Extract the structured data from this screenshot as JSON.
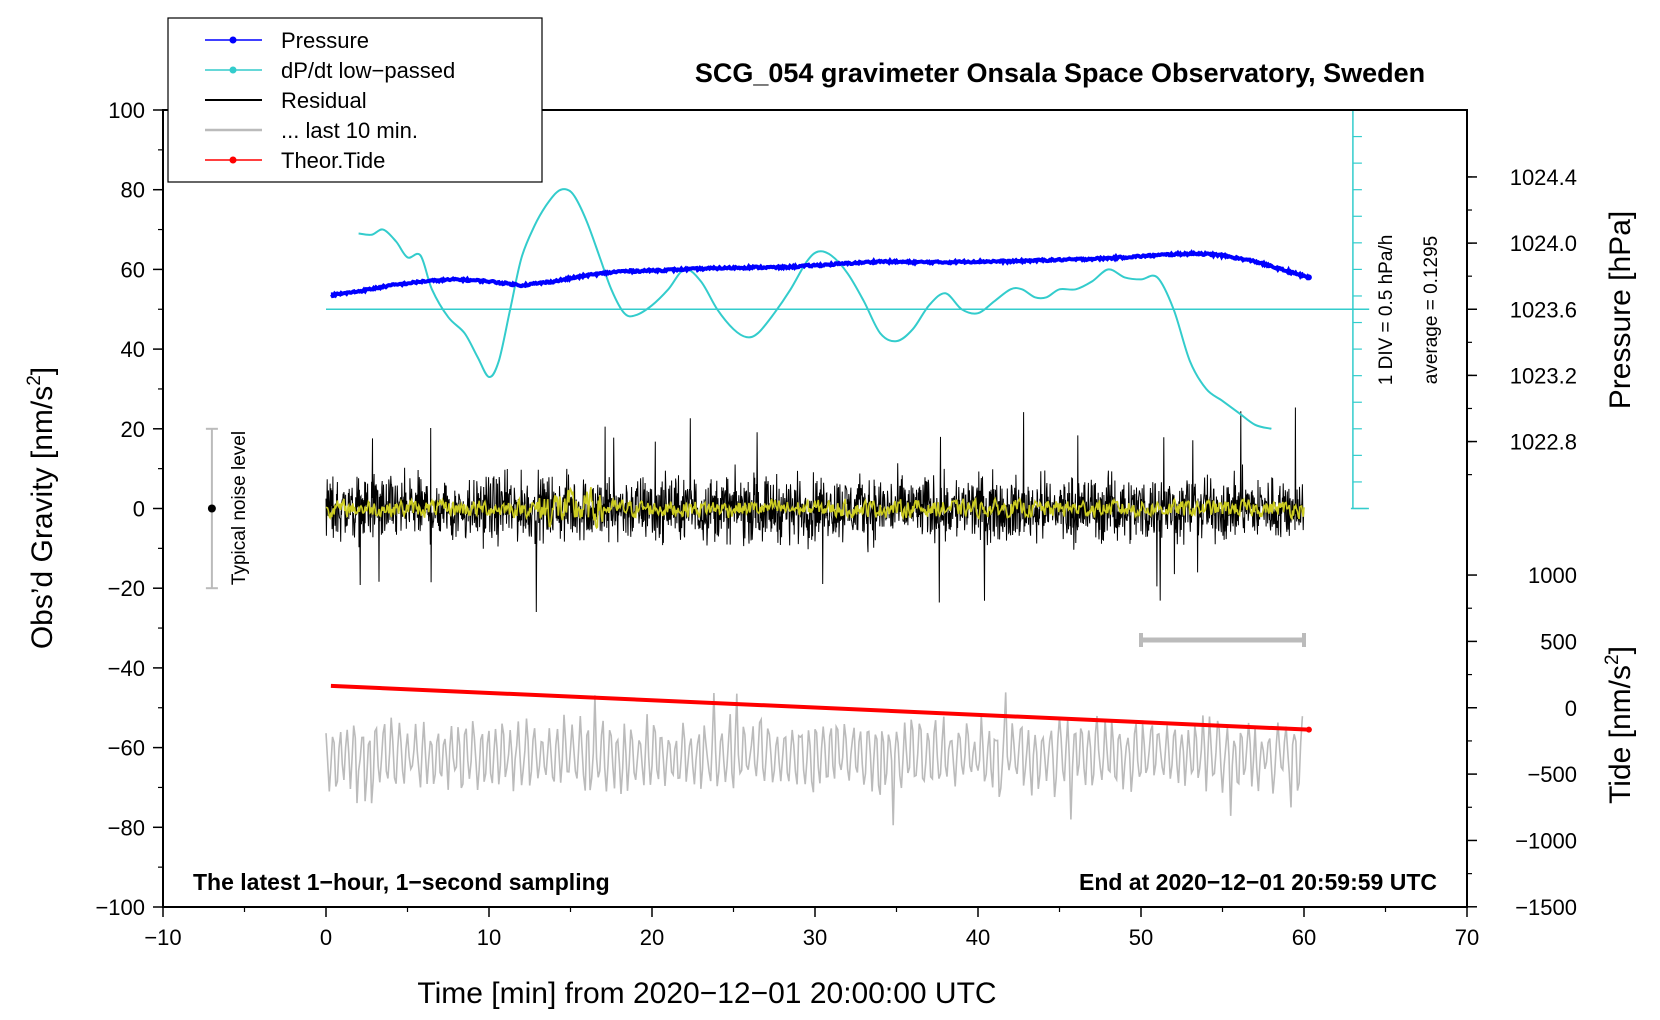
{
  "chart_data": {
    "type": "line",
    "title": "SCG_054 gravimeter Onsala Space Observatory, Sweden",
    "xlabel": "Time [min] from 2020−12−01 20:00:00 UTC",
    "ylabel_left_main": "Obs’d Gravity [nm/s",
    "ylabel_left_sup": "2",
    "ylabel_left_end": "]",
    "ylabel_right_pressure": "Pressure [hPa]",
    "ylabel_right_tide_main": "Tide [nm/s",
    "ylabel_right_tide_sup": "2",
    "ylabel_right_tide_end": "]",
    "xlim": [
      -10,
      70
    ],
    "ylim": [
      -100,
      100
    ],
    "x_ticks": [
      "−10",
      "0",
      "10",
      "20",
      "30",
      "40",
      "50",
      "60",
      "70"
    ],
    "x_tick_values": [
      -10,
      0,
      10,
      20,
      30,
      40,
      50,
      60,
      70
    ],
    "y_ticks": [
      "100",
      "80",
      "60",
      "40",
      "20",
      "0",
      "−20",
      "−40",
      "−60",
      "−80",
      "−100"
    ],
    "y_tick_values": [
      100,
      80,
      60,
      40,
      20,
      0,
      -20,
      -40,
      -60,
      -80,
      -100
    ],
    "pressure_axis": {
      "ticks": [
        "1024.4",
        "1024.0",
        "1023.6",
        "1023.2",
        "1022.8"
      ],
      "values": [
        1024.4,
        1024.0,
        1023.6,
        1023.2,
        1022.8
      ],
      "gravity_equiv_of_1023.6": 50,
      "gravity_per_hPa": 41.5
    },
    "tide_axis": {
      "ticks": [
        "1000",
        "500",
        "0",
        "−500",
        "−1000",
        "−1500"
      ],
      "values": [
        1000,
        500,
        0,
        -500,
        -1000,
        -1500
      ],
      "gravity_equiv_of_0": -50,
      "gravity_per_unit": 0.0333
    },
    "legend": {
      "placement": "top-left",
      "entries": [
        {
          "label": "Pressure",
          "color": "#0000ff",
          "marker": true
        },
        {
          "label": "dP/dt low−passed",
          "color": "#33cccc",
          "marker": true
        },
        {
          "label": "Residual",
          "color": "#000000",
          "marker": false
        },
        {
          "label": "... last 10 min.",
          "color": "#bbbbbb",
          "marker": false
        },
        {
          "label": "Theor.Tide",
          "color": "#ff0000",
          "marker": true
        }
      ]
    },
    "noise_level": {
      "label": "Typical noise level",
      "x": -7,
      "center": 0,
      "range": [
        -20,
        20
      ]
    },
    "dpdt_scale": {
      "label1": "1 DIV = 0.5 hPa/h",
      "label2": "average = 0.1295",
      "x": 63,
      "baseline": 50,
      "range": [
        0,
        100
      ]
    },
    "last10_bar": {
      "x": [
        50,
        60
      ],
      "y": -33
    },
    "annotation_left": "The latest 1−hour, 1−second sampling",
    "annotation_right": "End at 2020−12−01 20:59:59 UTC",
    "series": [
      {
        "name": "Pressure",
        "color": "#0000ff",
        "x": [
          0.3,
          2,
          4,
          6,
          8,
          10,
          12,
          14,
          16,
          18,
          20,
          22,
          24,
          26,
          28,
          30,
          32,
          34,
          36,
          38,
          40,
          42,
          44,
          46,
          48,
          50,
          52,
          53.5,
          55,
          57,
          59,
          60.3
        ],
        "y": [
          53.5,
          54.5,
          56,
          57,
          57.5,
          57,
          56,
          57,
          58.5,
          59.5,
          59.7,
          60,
          60.3,
          60.5,
          60.5,
          61,
          61.5,
          62,
          61.8,
          61.8,
          62,
          62,
          62.3,
          62.5,
          62.8,
          63.3,
          63.8,
          64,
          63.5,
          62,
          59.5,
          58
        ]
      },
      {
        "name": "dP/dt low−passed",
        "color": "#33cccc",
        "x": [
          2,
          2.8,
          3.5,
          4.3,
          5,
          5.8,
          6.5,
          7.5,
          8.5,
          9.3,
          10,
          10.6,
          11.3,
          12,
          12.8,
          13.5,
          14.2,
          14.8,
          15.3,
          16,
          16.8,
          17.5,
          18.3,
          19,
          20,
          21,
          22,
          23,
          24,
          25,
          25.8,
          26.5,
          27.5,
          28.5,
          29.5,
          30.2,
          31,
          32,
          33,
          34,
          35,
          36,
          37,
          38,
          39,
          40,
          41,
          42,
          42.7,
          43.5,
          44.2,
          45,
          46,
          47,
          48,
          49,
          50,
          51,
          52,
          53,
          54,
          55,
          56,
          57,
          58
        ],
        "y": [
          69,
          68.7,
          70,
          67,
          63,
          63.5,
          55,
          48,
          44,
          38,
          33,
          37,
          50,
          63,
          71,
          76,
          79.5,
          80,
          78,
          72,
          63,
          55,
          49,
          48.5,
          51,
          55,
          60,
          57,
          50,
          45,
          43,
          44,
          49,
          55,
          62,
          64.5,
          63.5,
          59,
          52,
          44,
          42,
          45,
          51,
          54,
          50,
          49,
          52,
          55,
          55,
          53,
          53,
          55,
          55,
          57,
          60,
          58,
          57.5,
          58,
          50,
          37,
          30,
          27,
          24,
          21,
          20
        ]
      },
      {
        "name": "Residual",
        "color": "#000000",
        "x_range": [
          0,
          60
        ],
        "center": 0,
        "amplitude": 12
      },
      {
        "name": "Residual smoothed",
        "color": "#cccc22",
        "x_range": [
          0,
          60
        ],
        "center": 0,
        "amplitude": 3
      },
      {
        "name": "... last 10 min.",
        "color": "#bbbbbb",
        "x_range": [
          0,
          60
        ],
        "center": -62,
        "amplitude": 7
      },
      {
        "name": "Theor.Tide",
        "color": "#ff0000",
        "x": [
          0.3,
          60.3
        ],
        "y": [
          -44.5,
          -55.5
        ]
      }
    ]
  }
}
